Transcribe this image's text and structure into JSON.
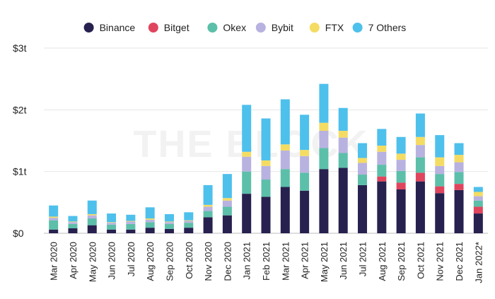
{
  "chart_data": {
    "type": "bar",
    "stacked": true,
    "watermark": "THE BLOCK",
    "legend_position": "top-center",
    "grid": "horizontal",
    "categories": [
      "Mar 2020",
      "Apr 2020",
      "May 2020",
      "Jun 2020",
      "Jul 2020",
      "Aug 2020",
      "Sep 2020",
      "Oct 2020",
      "Nov 2020",
      "Dec 2020",
      "Jan 2021",
      "Feb 2021",
      "Mar 2021",
      "Apr 2021",
      "May 2021",
      "Jun 2021",
      "Jul 2021",
      "Aug 2021",
      "Sep 2021",
      "Oct 2021",
      "Nov 2021",
      "Dec 2021",
      "Jan 2022*"
    ],
    "y_ticks": [
      {
        "value": 0,
        "label": "$0"
      },
      {
        "value": 1,
        "label": "$1t"
      },
      {
        "value": 2,
        "label": "$2t"
      },
      {
        "value": 3,
        "label": "$3t"
      }
    ],
    "ylim": [
      0,
      3
    ],
    "series": [
      {
        "name": "Binance",
        "color": "#27214f",
        "values": [
          0.06,
          0.08,
          0.13,
          0.06,
          0.06,
          0.09,
          0.07,
          0.09,
          0.26,
          0.29,
          0.64,
          0.59,
          0.75,
          0.69,
          1.04,
          1.06,
          0.78,
          0.84,
          0.71,
          0.84,
          0.65,
          0.7,
          0.32
        ]
      },
      {
        "name": "Bitget",
        "color": "#e0455e",
        "values": [
          0,
          0,
          0,
          0,
          0,
          0,
          0,
          0,
          0,
          0,
          0,
          0,
          0,
          0,
          0,
          0,
          0,
          0.08,
          0.11,
          0.14,
          0.11,
          0.1,
          0.11
        ]
      },
      {
        "name": "Okex",
        "color": "#5cbfa9",
        "values": [
          0.15,
          0.07,
          0.11,
          0.08,
          0.09,
          0.09,
          0.08,
          0.08,
          0.1,
          0.14,
          0.36,
          0.28,
          0.29,
          0.29,
          0.34,
          0.24,
          0.17,
          0.19,
          0.19,
          0.25,
          0.2,
          0.19,
          0.1
        ]
      },
      {
        "name": "Bybit",
        "color": "#b8b2e0",
        "values": [
          0.04,
          0.03,
          0.05,
          0.03,
          0.04,
          0.04,
          0.03,
          0.03,
          0.07,
          0.1,
          0.24,
          0.22,
          0.3,
          0.27,
          0.28,
          0.25,
          0.19,
          0.21,
          0.18,
          0.2,
          0.13,
          0.16,
          0.07
        ]
      },
      {
        "name": "FTX",
        "color": "#f4dc63",
        "values": [
          0.02,
          0.01,
          0.02,
          0.01,
          0.01,
          0.02,
          0.01,
          0.01,
          0.03,
          0.04,
          0.08,
          0.09,
          0.1,
          0.1,
          0.13,
          0.11,
          0.08,
          0.1,
          0.1,
          0.13,
          0.14,
          0.12,
          0.07
        ]
      },
      {
        "name": "7 Others",
        "color": "#4ec0ec",
        "values": [
          0.18,
          0.09,
          0.22,
          0.14,
          0.1,
          0.18,
          0.12,
          0.13,
          0.32,
          0.39,
          0.76,
          0.68,
          0.73,
          0.57,
          0.63,
          0.37,
          0.24,
          0.27,
          0.27,
          0.38,
          0.36,
          0.19,
          0.08
        ]
      }
    ]
  }
}
